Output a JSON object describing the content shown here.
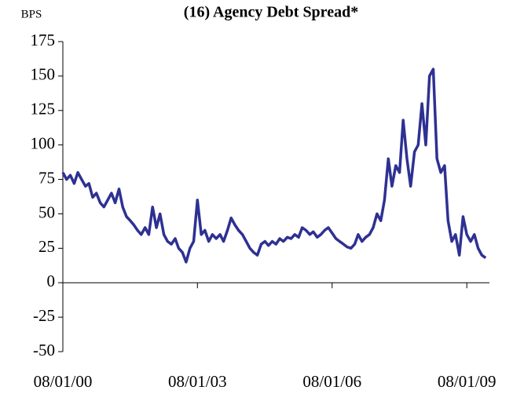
{
  "chart_data": {
    "type": "line",
    "title": "(16) Agency Debt Spread*",
    "y_label": "BPS",
    "x": [
      "2000-08-01",
      "2000-09-01",
      "2000-10-01",
      "2000-11-01",
      "2000-12-01",
      "2001-01-01",
      "2001-02-01",
      "2001-03-01",
      "2001-04-01",
      "2001-05-01",
      "2001-06-01",
      "2001-07-01",
      "2001-08-01",
      "2001-09-01",
      "2001-10-01",
      "2001-11-01",
      "2001-12-01",
      "2002-01-01",
      "2002-02-01",
      "2002-03-01",
      "2002-04-01",
      "2002-05-01",
      "2002-06-01",
      "2002-07-01",
      "2002-08-01",
      "2002-09-01",
      "2002-10-01",
      "2002-11-01",
      "2002-12-01",
      "2003-01-01",
      "2003-02-01",
      "2003-03-01",
      "2003-04-01",
      "2003-05-01",
      "2003-06-01",
      "2003-07-01",
      "2003-08-01",
      "2003-09-01",
      "2003-10-01",
      "2003-11-01",
      "2003-12-01",
      "2004-01-01",
      "2004-02-01",
      "2004-03-01",
      "2004-04-01",
      "2004-05-01",
      "2004-06-01",
      "2004-07-01",
      "2004-08-01",
      "2004-09-01",
      "2004-10-01",
      "2004-11-01",
      "2004-12-01",
      "2005-01-01",
      "2005-02-01",
      "2005-03-01",
      "2005-04-01",
      "2005-05-01",
      "2005-06-01",
      "2005-07-01",
      "2005-08-01",
      "2005-09-01",
      "2005-10-01",
      "2005-11-01",
      "2005-12-01",
      "2006-01-01",
      "2006-02-01",
      "2006-03-01",
      "2006-04-01",
      "2006-05-01",
      "2006-06-01",
      "2006-07-01",
      "2006-08-01",
      "2006-09-01",
      "2006-10-01",
      "2006-11-01",
      "2006-12-01",
      "2007-01-01",
      "2007-02-01",
      "2007-03-01",
      "2007-04-01",
      "2007-05-01",
      "2007-06-01",
      "2007-07-01",
      "2007-08-01",
      "2007-09-01",
      "2007-10-01",
      "2007-11-01",
      "2007-12-01",
      "2008-01-01",
      "2008-02-01",
      "2008-03-01",
      "2008-04-01",
      "2008-05-01",
      "2008-06-01",
      "2008-07-01",
      "2008-08-01",
      "2008-09-01",
      "2008-10-01",
      "2008-11-01",
      "2008-12-01",
      "2009-01-01",
      "2009-02-01",
      "2009-03-01",
      "2009-04-01",
      "2009-05-01",
      "2009-06-01",
      "2009-07-01",
      "2009-08-01",
      "2009-09-01",
      "2009-10-01",
      "2009-11-01",
      "2009-12-01",
      "2010-01-01"
    ],
    "values": [
      80,
      75,
      78,
      72,
      80,
      75,
      70,
      72,
      62,
      65,
      58,
      55,
      60,
      65,
      58,
      68,
      55,
      48,
      45,
      42,
      38,
      35,
      40,
      35,
      55,
      40,
      50,
      35,
      30,
      28,
      32,
      25,
      22,
      15,
      25,
      30,
      60,
      35,
      38,
      30,
      35,
      32,
      35,
      30,
      38,
      47,
      42,
      38,
      35,
      30,
      25,
      22,
      20,
      28,
      30,
      27,
      30,
      28,
      32,
      30,
      33,
      32,
      35,
      33,
      40,
      38,
      35,
      37,
      33,
      35,
      38,
      40,
      36,
      32,
      30,
      28,
      26,
      25,
      28,
      35,
      30,
      33,
      35,
      40,
      50,
      45,
      60,
      90,
      70,
      85,
      80,
      118,
      90,
      70,
      95,
      100,
      130,
      100,
      150,
      155,
      90,
      80,
      85,
      45,
      30,
      35,
      20,
      48,
      35,
      30,
      35,
      25,
      20,
      18
    ],
    "color": "#2e3192",
    "xlim": [
      "2000-08-01",
      "2010-02-01"
    ],
    "xticks": [
      {
        "value": "2000-08-01",
        "label": "08/01/00"
      },
      {
        "value": "2003-08-01",
        "label": "08/01/03"
      },
      {
        "value": "2006-08-01",
        "label": "08/01/06"
      },
      {
        "value": "2009-08-01",
        "label": "08/01/09"
      }
    ],
    "ylim": [
      -50,
      175
    ],
    "yticks": [
      -50,
      -25,
      0,
      25,
      50,
      75,
      100,
      125,
      150,
      175
    ]
  }
}
